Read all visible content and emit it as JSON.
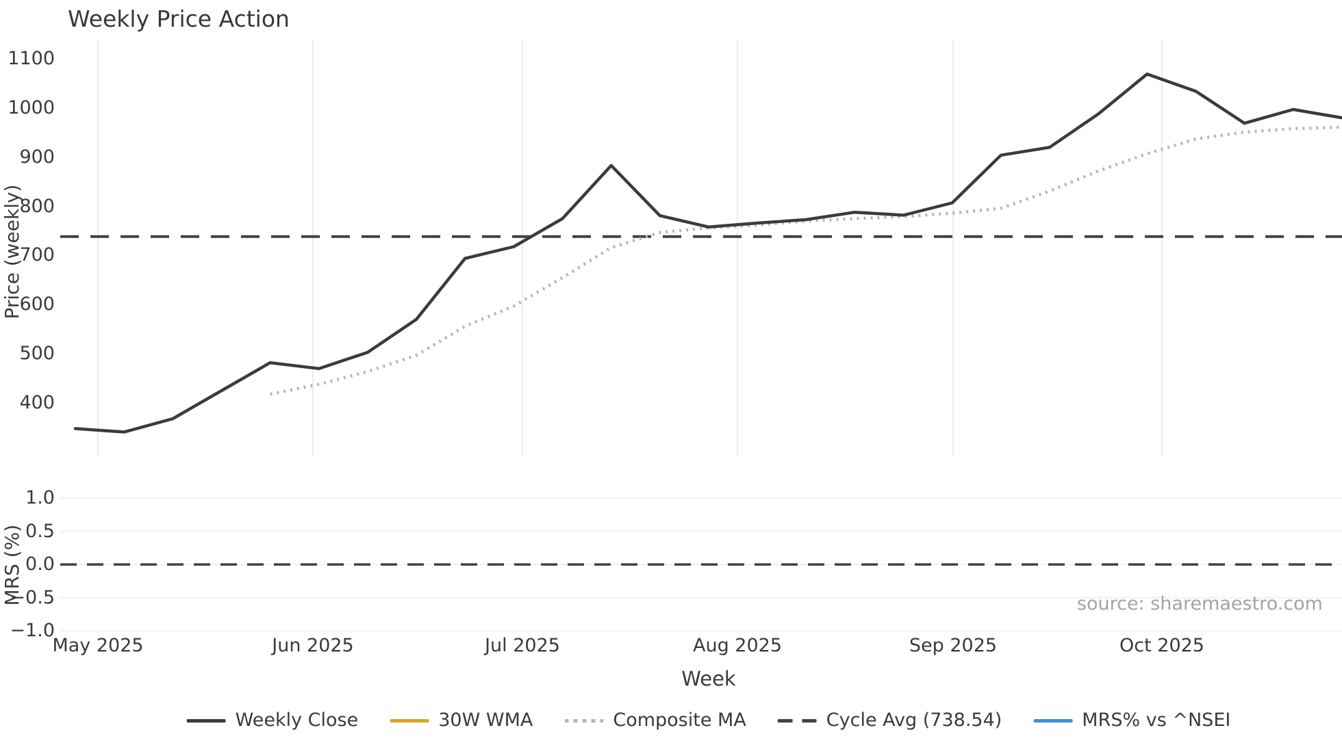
{
  "chart_data": {
    "type": "line",
    "title": "Weekly Price Action",
    "xlabel": "Week",
    "x_unit": "weekly data points (27 weeks, late Apr 2025 - late Oct 2025)",
    "x_tick_labels": [
      "May 2025",
      "Jun 2025",
      "Jul 2025",
      "Aug 2025",
      "Sep 2025",
      "Oct 2025"
    ],
    "grid": "vertical month gridlines on price panel; horizontal gridlines on MRS panel",
    "legend_position": "bottom center",
    "source": "source: sharemaestro.com",
    "panels": [
      {
        "ylabel": "Price (weekly)",
        "y_ticks": [
          1100,
          1000,
          900,
          800,
          700,
          600,
          500,
          400
        ],
        "ylim": [
          290,
          1140
        ],
        "series": [
          {
            "name": "Weekly Close",
            "style": "solid",
            "color": "#3b3b3b",
            "values": [
              348,
              341,
              368,
              425,
              482,
              470,
              503,
              570,
              694,
              718,
              775,
              883,
              781,
              758,
              766,
              773,
              788,
              782,
              807,
              904,
              920,
              988,
              1069,
              1034,
              969,
              997,
              980
            ]
          },
          {
            "name": "Composite MA",
            "style": "dotted",
            "color": "#b5b5b5",
            "values": [
              null,
              null,
              null,
              null,
              418,
              438,
              464,
              497,
              556,
              597,
              655,
              716,
              747,
              756,
              762,
              770,
              775,
              779,
              786,
              796,
              831,
              872,
              907,
              937,
              951,
              958,
              961
            ]
          },
          {
            "name": "Cycle Avg",
            "style": "dashed-hline",
            "color": "#414141",
            "value": 738.54
          }
        ]
      },
      {
        "ylabel": "MRS (%)",
        "y_ticks": [
          "1.0",
          "0.5",
          "0.0",
          "−0.5",
          "−1.0"
        ],
        "y_tick_values": [
          1.0,
          0.5,
          0.0,
          -0.5,
          -1.0
        ],
        "ylim": [
          -1.15,
          1.15
        ],
        "series": [
          {
            "name": "Zero line",
            "style": "dashed-hline",
            "color": "#414141",
            "value": 0.0
          }
        ]
      }
    ],
    "legend": [
      {
        "label": "Weekly Close",
        "swatch": "solid",
        "color": "#3b3b3b"
      },
      {
        "label": "30W WMA",
        "swatch": "solid",
        "color": "#d9a521"
      },
      {
        "label": "Composite MA",
        "swatch": "dotted",
        "color": "#b5b5b5"
      },
      {
        "label": "Cycle Avg (738.54)",
        "swatch": "dashed",
        "color": "#414141"
      },
      {
        "label": "MRS% vs ^NSEI",
        "swatch": "solid",
        "color": "#3e8ede"
      }
    ]
  }
}
